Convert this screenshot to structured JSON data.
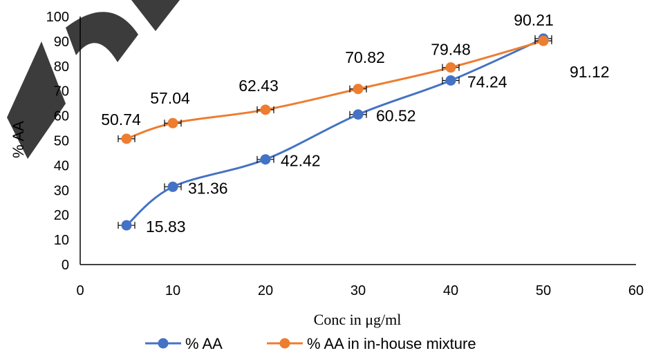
{
  "colors": {
    "series_1": "#4472C4",
    "series_2": "#ED7D31",
    "axis": "#000000",
    "watermark": "#1a1a1a"
  },
  "chart_data": {
    "type": "line",
    "xlabel": "Conc in μg/ml",
    "ylabel": "% AA",
    "xlim": [
      0,
      60
    ],
    "ylim": [
      0,
      100
    ],
    "x_ticks": [
      0,
      10,
      20,
      30,
      40,
      50,
      60
    ],
    "y_ticks": [
      0,
      10,
      20,
      30,
      40,
      50,
      60,
      70,
      80,
      90,
      100
    ],
    "grid": false,
    "legend_position": "bottom",
    "smoothed": true,
    "error_bars": "horizontal",
    "series": [
      {
        "name": "% AA",
        "color": "#4472C4",
        "x": [
          5,
          10,
          20,
          30,
          40,
          50
        ],
        "y": [
          15.83,
          31.36,
          42.42,
          60.52,
          74.24,
          91.12
        ],
        "labels": [
          "15.83",
          "31.36",
          "42.42",
          "60.52",
          "74.24",
          "91.12"
        ]
      },
      {
        "name": "% AA in in-house mixture",
        "color": "#ED7D31",
        "x": [
          5,
          10,
          20,
          30,
          40,
          50
        ],
        "y": [
          50.74,
          57.04,
          62.43,
          70.82,
          79.48,
          90.21
        ],
        "labels": [
          "50.74",
          "57.04",
          "62.43",
          "70.82",
          "79.48",
          "90.21"
        ]
      }
    ]
  }
}
